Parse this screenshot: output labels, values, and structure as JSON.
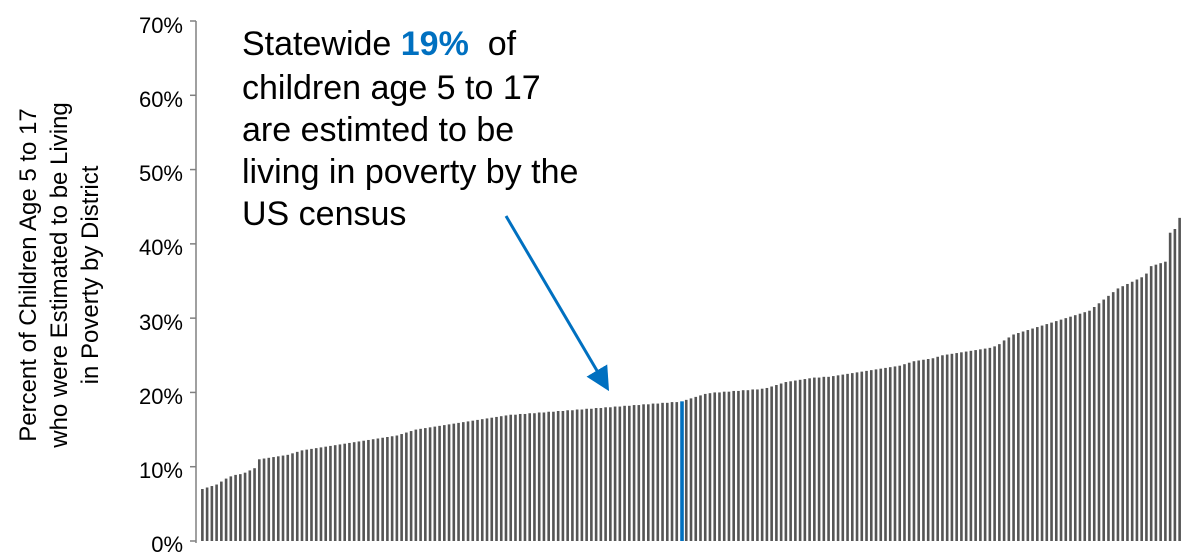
{
  "chart_data": {
    "type": "bar",
    "title": "",
    "xlabel": "",
    "ylabel": "Percent of Children Age 5 to 17 who were Estimated to be Living in Poverty by District",
    "ylabel_lines": [
      "Percent of Children Age 5 to 17",
      "who were Estimated to be Living",
      "in Poverty by District"
    ],
    "ylim": [
      0,
      70
    ],
    "yticks": [
      "0%",
      "10%",
      "20%",
      "30%",
      "40%",
      "50%",
      "60%",
      "70%"
    ],
    "grid": false,
    "legend": "none",
    "bar_count": 200,
    "highlight_index": 101,
    "values": [
      7.0,
      7.2,
      7.4,
      7.6,
      8.0,
      8.4,
      8.7,
      8.9,
      9.0,
      9.2,
      9.5,
      9.8,
      11.0,
      11.1,
      11.2,
      11.3,
      11.4,
      11.5,
      11.6,
      11.8,
      12.0,
      12.2,
      12.3,
      12.4,
      12.5,
      12.6,
      12.7,
      12.8,
      12.9,
      13.0,
      13.1,
      13.2,
      13.3,
      13.4,
      13.5,
      13.6,
      13.7,
      13.8,
      13.9,
      14.0,
      14.1,
      14.2,
      14.4,
      14.6,
      14.8,
      15.0,
      15.1,
      15.2,
      15.3,
      15.4,
      15.5,
      15.6,
      15.7,
      15.8,
      15.9,
      16.0,
      16.1,
      16.2,
      16.3,
      16.4,
      16.5,
      16.6,
      16.7,
      16.8,
      16.9,
      17.0,
      17.0,
      17.1,
      17.1,
      17.2,
      17.2,
      17.3,
      17.3,
      17.4,
      17.4,
      17.5,
      17.5,
      17.6,
      17.6,
      17.7,
      17.7,
      17.8,
      17.8,
      17.9,
      17.9,
      18.0,
      18.0,
      18.1,
      18.1,
      18.2,
      18.2,
      18.3,
      18.3,
      18.4,
      18.4,
      18.5,
      18.5,
      18.6,
      18.6,
      18.7,
      18.7,
      18.8,
      19.0,
      19.2,
      19.4,
      19.6,
      19.8,
      19.9,
      20.0,
      20.0,
      20.1,
      20.1,
      20.2,
      20.2,
      20.3,
      20.3,
      20.4,
      20.4,
      20.5,
      20.6,
      20.8,
      21.0,
      21.2,
      21.4,
      21.5,
      21.6,
      21.7,
      21.8,
      21.9,
      22.0,
      22.0,
      22.1,
      22.1,
      22.2,
      22.3,
      22.4,
      22.5,
      22.6,
      22.7,
      22.8,
      22.9,
      23.0,
      23.1,
      23.2,
      23.3,
      23.4,
      23.5,
      23.6,
      23.8,
      24.0,
      24.2,
      24.3,
      24.4,
      24.5,
      24.6,
      24.8,
      25.0,
      25.1,
      25.2,
      25.3,
      25.4,
      25.5,
      25.6,
      25.7,
      25.8,
      25.9,
      26.0,
      26.2,
      26.5,
      27.0,
      27.4,
      27.8,
      28.0,
      28.2,
      28.4,
      28.6,
      28.8,
      29.0,
      29.2,
      29.4,
      29.6,
      29.8,
      30.0,
      30.2,
      30.4,
      30.6,
      30.8,
      31.0,
      31.5,
      32.0,
      32.5,
      33.0,
      33.5,
      34.0,
      34.3,
      34.6,
      34.9,
      35.2,
      35.5,
      36.0,
      37.0,
      37.2,
      37.4,
      37.6,
      41.5,
      42.0,
      43.5
    ]
  },
  "callout": {
    "lines": [
      [
        "Statewide ",
        "19%",
        "  of"
      ],
      "children age 5 to 17",
      "are estimted to be",
      "living in poverty by the",
      "US census"
    ],
    "highlight_value": "19%"
  },
  "colors": {
    "bar": "#555555",
    "highlight_bar": "#0070C0",
    "arrow": "#0070C0",
    "highlight_text": "#0070C0",
    "axis": "#808080",
    "text": "#000000"
  }
}
